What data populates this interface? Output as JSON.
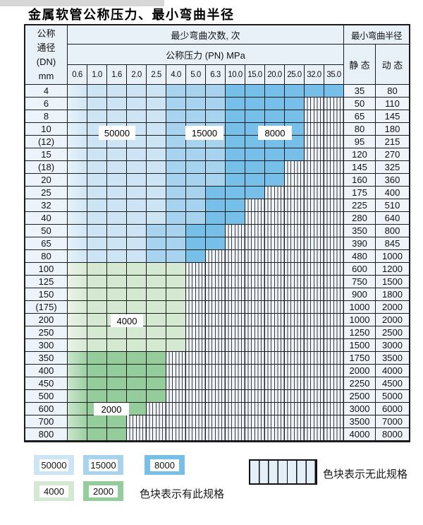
{
  "page": {
    "title": "金属软管公称压力、最小弯曲半径"
  },
  "table": {
    "row_header_lines": [
      "公称",
      "通径",
      "(DN)",
      "mm"
    ],
    "cycles_header": "最少弯曲次数, 次",
    "pressure_header": "公称压力 (PN) MPa",
    "radius_header": "最小弯曲半径",
    "static_label": "静 态",
    "dynamic_label": "动 态",
    "pressures": [
      "0.6",
      "1.0",
      "1.6",
      "2.0",
      "2.5",
      "4.0",
      "5.0",
      "6.3",
      "10.0",
      "15.0",
      "20.0",
      "25.0",
      "32.0",
      "35.0"
    ]
  },
  "overlays": {
    "b50000": "50000",
    "b15000": "15000",
    "b8000": "8000",
    "g4000": "4000",
    "g2000": "2000"
  },
  "legend": {
    "swatches": {
      "s50000": "50000",
      "s15000": "15000",
      "s8000": "8000",
      "s4000": "4000",
      "s2000": "2000"
    },
    "has_spec_note": "色块表示有此规格",
    "no_spec_note": "色块表示无此规格"
  },
  "colors": {
    "cycles_50000": "#cde4f5",
    "cycles_15000": "#a7d3ef",
    "cycles_8000": "#76bfe8",
    "cycles_4000": "#d5e8d2",
    "cycles_2000": "#94cd9b"
  },
  "chart_data": {
    "type": "table",
    "title": "金属软管公称压力、最小弯曲半径",
    "pressure_columns_MPa": [
      0.6,
      1.0,
      1.6,
      2.0,
      2.5,
      4.0,
      5.0,
      6.3,
      10.0,
      15.0,
      20.0,
      25.0,
      32.0,
      35.0
    ],
    "cell_value_meaning": "最少弯曲次数(次); null = 无此规格",
    "rows": [
      {
        "dn": "4",
        "static": "35",
        "dynamic": "80",
        "cycles": [
          50000,
          50000,
          50000,
          50000,
          50000,
          15000,
          15000,
          15000,
          8000,
          8000,
          8000,
          8000,
          8000,
          8000
        ]
      },
      {
        "dn": "6",
        "static": "50",
        "dynamic": "110",
        "cycles": [
          50000,
          50000,
          50000,
          50000,
          50000,
          15000,
          15000,
          15000,
          8000,
          8000,
          8000,
          8000,
          null,
          null
        ]
      },
      {
        "dn": "8",
        "static": "65",
        "dynamic": "145",
        "cycles": [
          50000,
          50000,
          50000,
          50000,
          50000,
          15000,
          15000,
          15000,
          8000,
          8000,
          8000,
          8000,
          null,
          null
        ]
      },
      {
        "dn": "10",
        "static": "80",
        "dynamic": "180",
        "cycles": [
          50000,
          50000,
          50000,
          50000,
          50000,
          15000,
          15000,
          15000,
          8000,
          8000,
          8000,
          8000,
          null,
          null
        ]
      },
      {
        "dn": "(12)",
        "static": "95",
        "dynamic": "215",
        "cycles": [
          50000,
          50000,
          50000,
          50000,
          50000,
          15000,
          15000,
          15000,
          8000,
          8000,
          8000,
          8000,
          null,
          null
        ]
      },
      {
        "dn": "15",
        "static": "120",
        "dynamic": "270",
        "cycles": [
          50000,
          50000,
          50000,
          50000,
          50000,
          15000,
          15000,
          15000,
          8000,
          8000,
          8000,
          8000,
          null,
          null
        ]
      },
      {
        "dn": "(18)",
        "static": "145",
        "dynamic": "325",
        "cycles": [
          50000,
          50000,
          50000,
          50000,
          50000,
          15000,
          15000,
          15000,
          8000,
          8000,
          8000,
          null,
          null,
          null
        ]
      },
      {
        "dn": "20",
        "static": "160",
        "dynamic": "360",
        "cycles": [
          50000,
          50000,
          50000,
          50000,
          50000,
          15000,
          15000,
          15000,
          8000,
          8000,
          8000,
          null,
          null,
          null
        ]
      },
      {
        "dn": "25",
        "static": "175",
        "dynamic": "400",
        "cycles": [
          50000,
          50000,
          50000,
          50000,
          50000,
          15000,
          15000,
          8000,
          8000,
          8000,
          null,
          null,
          null,
          null
        ]
      },
      {
        "dn": "32",
        "static": "225",
        "dynamic": "510",
        "cycles": [
          50000,
          50000,
          50000,
          50000,
          50000,
          15000,
          15000,
          8000,
          8000,
          null,
          null,
          null,
          null,
          null
        ]
      },
      {
        "dn": "40",
        "static": "280",
        "dynamic": "640",
        "cycles": [
          50000,
          50000,
          50000,
          50000,
          50000,
          15000,
          15000,
          8000,
          8000,
          null,
          null,
          null,
          null,
          null
        ]
      },
      {
        "dn": "50",
        "static": "350",
        "dynamic": "800",
        "cycles": [
          50000,
          50000,
          50000,
          50000,
          15000,
          15000,
          8000,
          8000,
          null,
          null,
          null,
          null,
          null,
          null
        ]
      },
      {
        "dn": "65",
        "static": "390",
        "dynamic": "845",
        "cycles": [
          50000,
          50000,
          50000,
          50000,
          15000,
          15000,
          8000,
          8000,
          null,
          null,
          null,
          null,
          null,
          null
        ]
      },
      {
        "dn": "80",
        "static": "480",
        "dynamic": "1000",
        "cycles": [
          50000,
          50000,
          50000,
          50000,
          15000,
          15000,
          8000,
          null,
          null,
          null,
          null,
          null,
          null,
          null
        ]
      },
      {
        "dn": "100",
        "static": "600",
        "dynamic": "1200",
        "cycles": [
          4000,
          4000,
          4000,
          4000,
          4000,
          4000,
          null,
          null,
          null,
          null,
          null,
          null,
          null,
          null
        ]
      },
      {
        "dn": "125",
        "static": "750",
        "dynamic": "1500",
        "cycles": [
          4000,
          4000,
          4000,
          4000,
          4000,
          4000,
          null,
          null,
          null,
          null,
          null,
          null,
          null,
          null
        ]
      },
      {
        "dn": "150",
        "static": "900",
        "dynamic": "1800",
        "cycles": [
          4000,
          4000,
          4000,
          4000,
          4000,
          4000,
          null,
          null,
          null,
          null,
          null,
          null,
          null,
          null
        ]
      },
      {
        "dn": "(175)",
        "static": "1000",
        "dynamic": "2000",
        "cycles": [
          4000,
          4000,
          4000,
          4000,
          4000,
          4000,
          null,
          null,
          null,
          null,
          null,
          null,
          null,
          null
        ]
      },
      {
        "dn": "200",
        "static": "1000",
        "dynamic": "2000",
        "cycles": [
          4000,
          4000,
          4000,
          4000,
          4000,
          4000,
          null,
          null,
          null,
          null,
          null,
          null,
          null,
          null
        ]
      },
      {
        "dn": "250",
        "static": "1250",
        "dynamic": "2500",
        "cycles": [
          4000,
          4000,
          4000,
          4000,
          4000,
          4000,
          null,
          null,
          null,
          null,
          null,
          null,
          null,
          null
        ]
      },
      {
        "dn": "300",
        "static": "1500",
        "dynamic": "3000",
        "cycles": [
          4000,
          4000,
          4000,
          4000,
          4000,
          4000,
          null,
          null,
          null,
          null,
          null,
          null,
          null,
          null
        ]
      },
      {
        "dn": "350",
        "static": "1750",
        "dynamic": "3500",
        "cycles": [
          2000,
          2000,
          2000,
          2000,
          2000,
          null,
          null,
          null,
          null,
          null,
          null,
          null,
          null,
          null
        ]
      },
      {
        "dn": "400",
        "static": "2000",
        "dynamic": "4000",
        "cycles": [
          2000,
          2000,
          2000,
          2000,
          2000,
          null,
          null,
          null,
          null,
          null,
          null,
          null,
          null,
          null
        ]
      },
      {
        "dn": "450",
        "static": "2250",
        "dynamic": "4500",
        "cycles": [
          2000,
          2000,
          2000,
          2000,
          2000,
          null,
          null,
          null,
          null,
          null,
          null,
          null,
          null,
          null
        ]
      },
      {
        "dn": "500",
        "static": "2500",
        "dynamic": "5000",
        "cycles": [
          2000,
          2000,
          2000,
          2000,
          2000,
          null,
          null,
          null,
          null,
          null,
          null,
          null,
          null,
          null
        ]
      },
      {
        "dn": "600",
        "static": "3000",
        "dynamic": "6000",
        "cycles": [
          2000,
          2000,
          2000,
          2000,
          null,
          null,
          null,
          null,
          null,
          null,
          null,
          null,
          null,
          null
        ]
      },
      {
        "dn": "700",
        "static": "3500",
        "dynamic": "7000",
        "cycles": [
          2000,
          2000,
          2000,
          null,
          null,
          null,
          null,
          null,
          null,
          null,
          null,
          null,
          null,
          null
        ]
      },
      {
        "dn": "800",
        "static": "4000",
        "dynamic": "8000",
        "cycles": [
          2000,
          2000,
          2000,
          null,
          null,
          null,
          null,
          null,
          null,
          null,
          null,
          null,
          null,
          null
        ]
      }
    ],
    "legend": {
      "colored_blocks": [
        50000,
        15000,
        8000,
        4000,
        2000
      ],
      "has_spec_note": "色块表示有此规格",
      "no_spec_note": "色块表示无此规格"
    }
  }
}
